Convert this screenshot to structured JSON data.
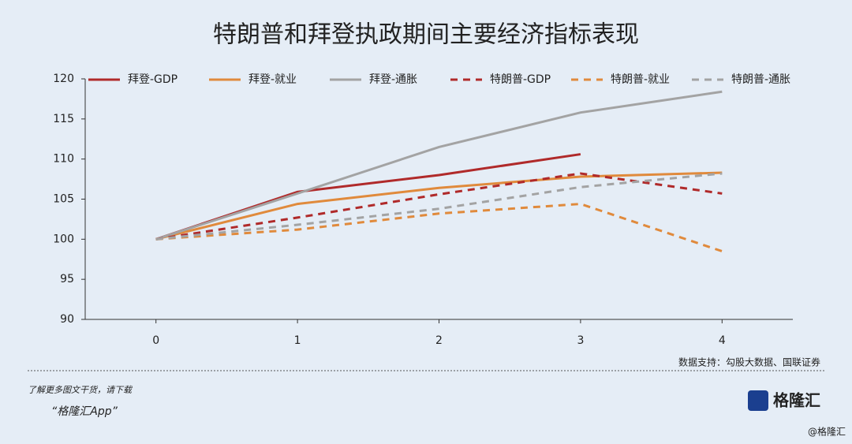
{
  "chart_data": {
    "type": "line",
    "title": "特朗普和拜登执政期间主要经济指标表现",
    "x": [
      0,
      1,
      2,
      3,
      4
    ],
    "xlim": [
      -0.5,
      4.5
    ],
    "xticks": [
      0,
      1,
      2,
      3,
      4
    ],
    "ylim": [
      90,
      120
    ],
    "yticks": [
      90,
      95,
      100,
      105,
      110,
      115,
      120
    ],
    "legend": "top",
    "series": [
      {
        "name": "拜登-GDP",
        "color": "#b02a2a",
        "dash": false,
        "values": [
          100,
          105.9,
          108,
          110.6,
          null
        ]
      },
      {
        "name": "拜登-就业",
        "color": "#e08a3c",
        "dash": false,
        "values": [
          100,
          104.4,
          106.4,
          107.8,
          108.3
        ]
      },
      {
        "name": "拜登-通胀",
        "color": "#a3a3a3",
        "dash": false,
        "values": [
          100,
          105.7,
          111.5,
          115.8,
          118.4
        ]
      },
      {
        "name": "特朗普-GDP",
        "color": "#b02a2a",
        "dash": true,
        "values": [
          100,
          102.7,
          105.6,
          108.2,
          105.7
        ]
      },
      {
        "name": "特朗普-就业",
        "color": "#e08a3c",
        "dash": true,
        "values": [
          100,
          101.2,
          103.2,
          104.4,
          98.5
        ]
      },
      {
        "name": "特朗普-通胀",
        "color": "#a3a3a3",
        "dash": true,
        "values": [
          100,
          101.8,
          103.8,
          106.5,
          108.2
        ]
      }
    ],
    "source": "数据支持：勾股大数据、国联证券"
  },
  "footer": {
    "line1": "了解更多图文干货，请下载",
    "app": "“格隆汇App”",
    "logo": "格隆汇",
    "watermark": "@格隆汇"
  }
}
